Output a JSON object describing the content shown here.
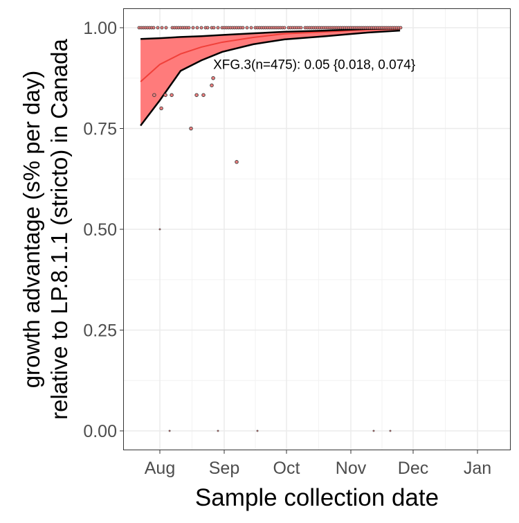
{
  "chart_data": {
    "type": "scatter",
    "title": "",
    "xlabel": "Sample collection date",
    "ylabel_line1": "growth advantage (s% per day)",
    "ylabel_line2": "relative to LP.8.1.1 (stricto) in Canada",
    "x_unit": "days since Aug 1",
    "xlim": [
      -17.7,
      169
    ],
    "ylim": [
      -0.05,
      1.05
    ],
    "x_ticks": [
      {
        "label": "Aug",
        "value": 0
      },
      {
        "label": "Sep",
        "value": 31
      },
      {
        "label": "Oct",
        "value": 61
      },
      {
        "label": "Nov",
        "value": 92
      },
      {
        "label": "Dec",
        "value": 122
      },
      {
        "label": "Jan",
        "value": 153
      }
    ],
    "y_ticks": [
      {
        "label": "0.00",
        "value": 0
      },
      {
        "label": "0.25",
        "value": 0.25
      },
      {
        "label": "0.50",
        "value": 0.5
      },
      {
        "label": "0.75",
        "value": 0.75
      },
      {
        "label": "1.00",
        "value": 1.0
      }
    ],
    "grid": true,
    "annotation": {
      "text": "XFG.3(n=475): 0.05 {0.018, 0.074}",
      "x": 25.7,
      "y": 0.91
    },
    "fit": {
      "x": [
        -9.3,
        0,
        10,
        20,
        30,
        45,
        60,
        80,
        100,
        115.7
      ],
      "mean": [
        0.866,
        0.909,
        0.935,
        0.952,
        0.964,
        0.976,
        0.985,
        0.99,
        0.995,
        0.997
      ],
      "lower": [
        0.757,
        0.82,
        0.893,
        0.919,
        0.94,
        0.959,
        0.971,
        0.979,
        0.988,
        0.993
      ],
      "upper": [
        0.972,
        0.974,
        0.977,
        0.979,
        0.982,
        0.986,
        0.99,
        0.993,
        0.997,
        0.998
      ]
    },
    "points": [
      {
        "x": -2.7,
        "y": 0.833
      },
      {
        "x": 2.7,
        "y": 0.833
      },
      {
        "x": 5.7,
        "y": 0.833
      },
      {
        "x": 0.7,
        "y": 0.8
      },
      {
        "x": 17.7,
        "y": 0.833
      },
      {
        "x": 21,
        "y": 0.833
      },
      {
        "x": 25,
        "y": 0.857
      },
      {
        "x": 25.7,
        "y": 0.875
      },
      {
        "x": 15,
        "y": 0.75
      },
      {
        "x": 37,
        "y": 0.667
      }
    ],
    "small_points": [
      {
        "x": 0,
        "y": 0.5
      },
      {
        "x": 4.7,
        "y": 0
      },
      {
        "x": 28,
        "y": 0
      },
      {
        "x": 47,
        "y": 0
      },
      {
        "x": 103,
        "y": 0
      },
      {
        "x": 111,
        "y": 0
      }
    ],
    "top_points_x": [
      -10,
      -9,
      -8,
      -7,
      -6,
      -5,
      -4,
      -3,
      -1,
      1,
      3,
      6,
      7,
      8,
      9,
      10,
      11,
      12,
      13,
      14,
      16,
      18,
      20,
      22,
      23,
      25,
      26,
      28,
      30,
      31,
      32,
      33,
      34,
      35,
      36,
      37,
      38,
      39,
      40,
      42,
      44,
      46,
      47,
      48,
      49,
      50,
      51,
      52,
      53,
      54,
      55,
      56,
      57,
      58,
      59,
      60,
      62,
      63,
      64,
      65,
      66,
      67,
      68,
      70,
      71,
      72,
      73,
      74,
      75,
      76,
      77,
      78,
      79,
      80,
      81,
      82,
      83,
      84,
      85,
      86,
      87,
      88,
      89,
      90,
      91,
      92,
      93,
      94,
      95,
      96,
      97,
      98,
      99,
      100,
      101,
      102,
      103,
      104,
      105,
      106,
      107,
      108,
      109,
      110,
      111,
      112,
      113,
      114,
      115,
      116
    ],
    "colors": {
      "ribbon": "#ff7b7b",
      "mean_line": "#f0403a",
      "bound_line": "#000000",
      "point_fill": "#f08080",
      "point_stroke": "#3a3a3a"
    }
  }
}
